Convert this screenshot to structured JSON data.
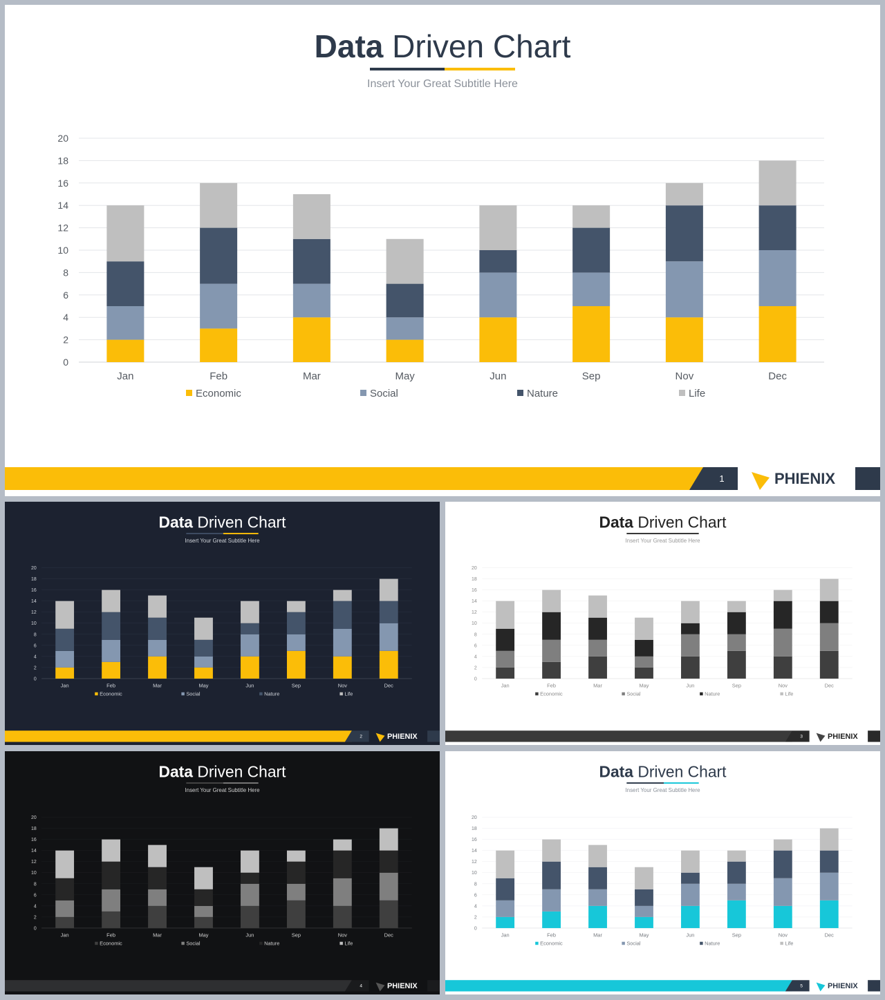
{
  "brand": "PHIENIX",
  "slides": [
    {
      "title_bold": "Data",
      "title_rest": " Driven Chart",
      "subtitle": "Insert  Your Great Subtitle Here",
      "page": "1",
      "theme": {
        "bg": "#ffffff",
        "title": "#2e3a4b",
        "subtitle": "#8a9099",
        "tick": "#555a61",
        "grid": "#e3e5e8",
        "axis": "#d0d3d7",
        "underline_left": "#2e3a4b",
        "underline_right": "#fbbd08",
        "footer_bar": "#fbbd08",
        "footer_dark": "#2e3a4b",
        "brand_text": "#2e3a4b",
        "logo": "#fbbd08",
        "page_text": "#ffffff",
        "colors": [
          "#fbbd08",
          "#8497b0",
          "#44546a",
          "#bfbfbf"
        ]
      }
    },
    {
      "title_bold": "Data",
      "title_rest": " Driven Chart",
      "subtitle": "Insert  Your Great Subtitle Here",
      "page": "2",
      "theme": {
        "bg": "#1c2230",
        "title": "#ffffff",
        "subtitle": "#d0d4da",
        "tick": "#d0d4da",
        "grid": "#2c3444",
        "axis": "#58606e",
        "underline_left": "#3e4c63",
        "underline_right": "#fbbd08",
        "footer_bar": "#fbbd08",
        "footer_dark": "#2e3a4b",
        "brand_text": "#ffffff",
        "logo": "#fbbd08",
        "page_text": "#ffffff",
        "colors": [
          "#fbbd08",
          "#8497b0",
          "#44546a",
          "#bfbfbf"
        ]
      }
    },
    {
      "title_bold": "Data",
      "title_rest": " Driven Chart",
      "subtitle": "Insert  Your Great Subtitle Here",
      "page": "3",
      "theme": {
        "bg": "#ffffff",
        "title": "#222222",
        "subtitle": "#9a9a9a",
        "tick": "#888888",
        "grid": "#eeeeee",
        "axis": "#d6d6d6",
        "underline_left": "#333333",
        "underline_right": "#333333",
        "footer_bar": "#3a3a3a",
        "footer_dark": "#2a2a2a",
        "brand_text": "#222222",
        "logo": "#444444",
        "page_text": "#ffffff",
        "colors": [
          "#3f3f3f",
          "#7f7f7f",
          "#262626",
          "#bfbfbf"
        ]
      }
    },
    {
      "title_bold": "Data",
      "title_rest": " Driven Chart",
      "subtitle": "Insert  Your Great Subtitle Here",
      "page": "4",
      "theme": {
        "bg": "#111214",
        "title": "#ffffff",
        "subtitle": "#d0d0d0",
        "tick": "#d0d0d0",
        "grid": "#1e1f22",
        "axis": "#555555",
        "underline_left": "#444444",
        "underline_right": "#777777",
        "footer_bar": "#2e2f31",
        "footer_dark": "#1a1b1d",
        "brand_text": "#ffffff",
        "logo": "#555555",
        "page_text": "#ffffff",
        "colors": [
          "#3f3f3f",
          "#7f7f7f",
          "#262626",
          "#bfbfbf"
        ]
      }
    },
    {
      "title_bold": "Data",
      "title_rest": " Driven Chart",
      "subtitle": "Insert  Your Great Subtitle Here",
      "page": "5",
      "theme": {
        "bg": "#ffffff",
        "title": "#2e3a4b",
        "subtitle": "#8a9099",
        "tick": "#777b80",
        "grid": "#eceef0",
        "axis": "#d0d3d7",
        "underline_left": "#2e3a4b",
        "underline_right": "#17c7d9",
        "footer_bar": "#17c7d9",
        "footer_dark": "#2e3a4b",
        "brand_text": "#2e3a4b",
        "logo": "#17c7d9",
        "page_text": "#ffffff",
        "colors": [
          "#17c7d9",
          "#8497b0",
          "#44546a",
          "#bfbfbf"
        ]
      }
    }
  ],
  "chart_data": {
    "type": "bar",
    "stacked": true,
    "categories": [
      "Jan",
      "Feb",
      "Mar",
      "May",
      "Jun",
      "Sep",
      "Nov",
      "Dec"
    ],
    "series": [
      {
        "name": "Economic",
        "values": [
          2,
          3,
          4,
          2,
          4,
          5,
          4,
          5
        ]
      },
      {
        "name": "Social",
        "values": [
          3,
          4,
          3,
          2,
          4,
          3,
          5,
          5
        ]
      },
      {
        "name": "Nature",
        "values": [
          4,
          5,
          4,
          3,
          2,
          4,
          5,
          4
        ]
      },
      {
        "name": "Life",
        "values": [
          5,
          4,
          4,
          4,
          4,
          2,
          2,
          4
        ]
      }
    ],
    "ylim": [
      0,
      20
    ],
    "yticks": [
      0,
      2,
      4,
      6,
      8,
      10,
      12,
      14,
      16,
      18,
      20
    ],
    "grid": true,
    "legend_position": "bottom",
    "title": "Data Driven Chart",
    "subtitle": "Insert  Your Great Subtitle Here"
  }
}
